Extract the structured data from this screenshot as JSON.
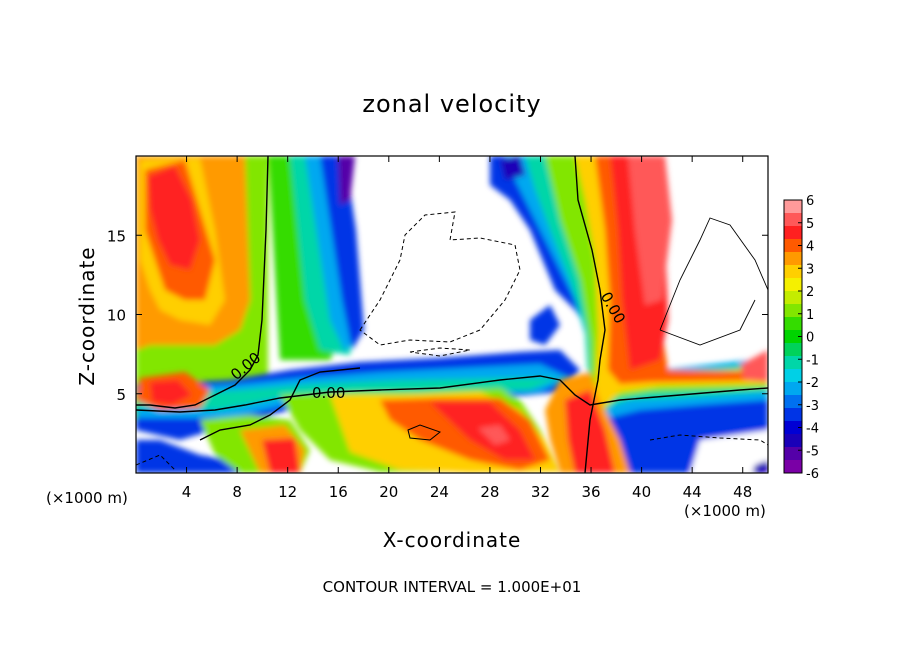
{
  "chart_data": {
    "type": "heatmap",
    "title": "zonal velocity",
    "xlabel": "X-coordinate",
    "ylabel": "Z-coordinate",
    "x_unit": "(×1000 m)",
    "x_unit_right": "(×1000 m)",
    "xlim": [
      0,
      50
    ],
    "ylim": [
      0,
      20
    ],
    "x_ticks": [
      4,
      8,
      12,
      16,
      20,
      24,
      28,
      32,
      36,
      40,
      44,
      48
    ],
    "y_ticks": [
      5,
      10,
      15
    ],
    "colorbar": {
      "ticks": [
        6,
        5,
        4,
        3,
        2,
        1,
        0,
        -1,
        -2,
        -3,
        -4,
        -5,
        -6
      ],
      "range": [
        -6,
        6
      ],
      "colors": [
        "#ff9a9a",
        "#ff5858",
        "#ff2020",
        "#ff5a00",
        "#ff9a00",
        "#ffcf00",
        "#f5f000",
        "#c4ec00",
        "#82e600",
        "#34dc00",
        "#00d400",
        "#00d25a",
        "#00d6a8",
        "#00d0e6",
        "#00a8f0",
        "#0070f0",
        "#0034e6",
        "#0000d4",
        "#1a00b8",
        "#5400a8",
        "#7a00a6"
      ]
    },
    "contour_labels": [
      "0.00",
      "0.00",
      "0.00"
    ],
    "footer": "CONTOUR INTERVAL = 1.000E+01"
  }
}
